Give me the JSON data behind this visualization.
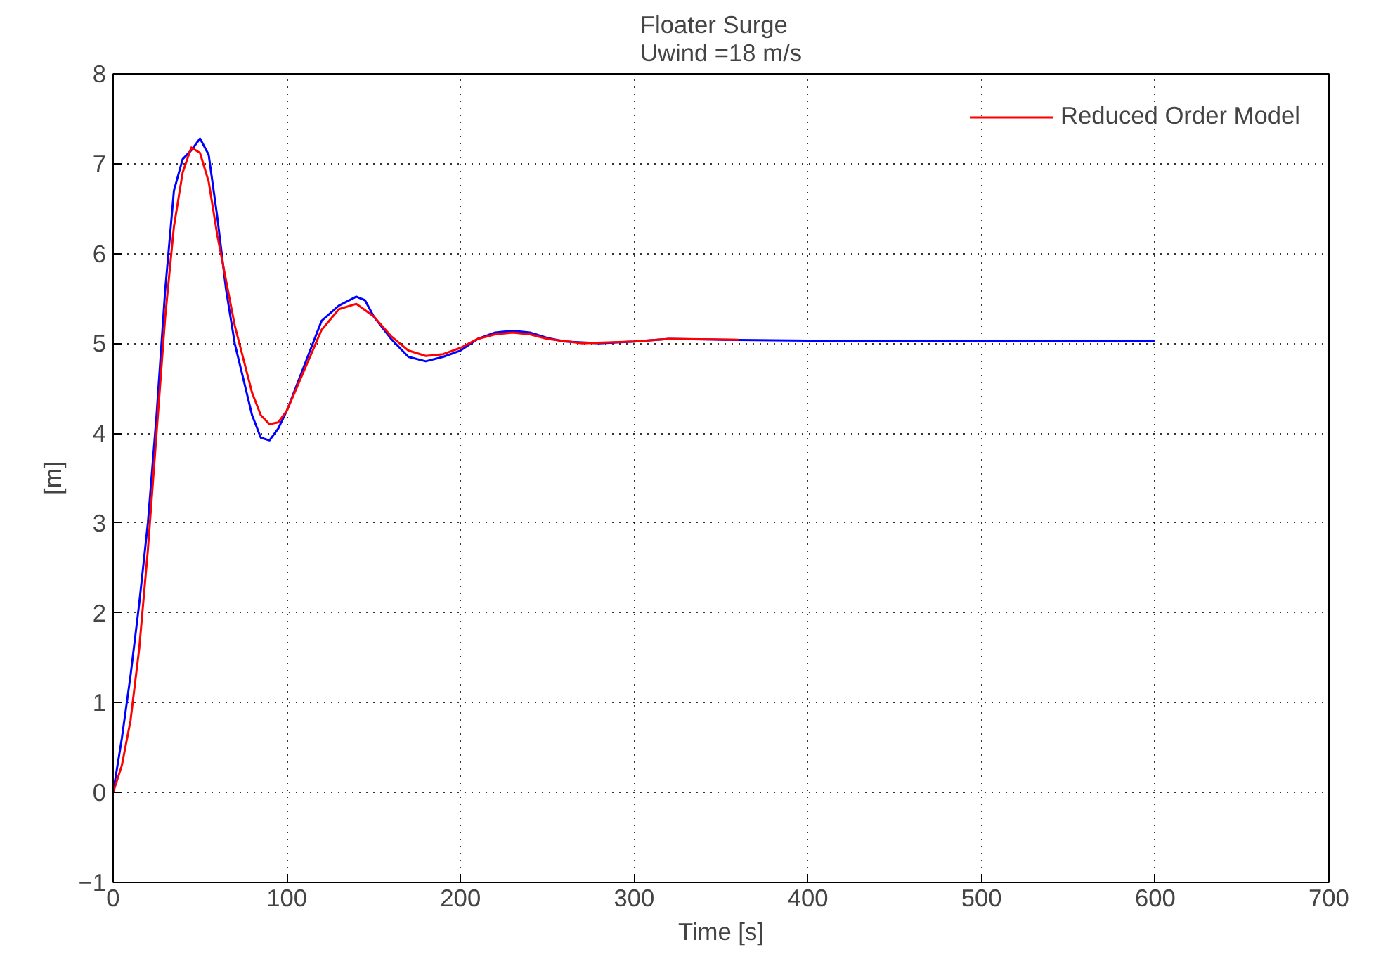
{
  "chart_data": {
    "type": "line",
    "title": "Floater Surge\nUwind =18 m/s",
    "xlabel": "Time [s]",
    "ylabel": "[m]",
    "xlim": [
      0,
      700
    ],
    "xticks": [
      0,
      100,
      200,
      300,
      400,
      500,
      600,
      700
    ],
    "ylim": [
      -1,
      8
    ],
    "yticks": [
      -1,
      0,
      1,
      2,
      3,
      4,
      5,
      6,
      7,
      8
    ],
    "grid": true,
    "legend": "top right",
    "line_style": "solid",
    "series": [
      {
        "color": "#0000ff",
        "x": [
          0,
          5,
          10,
          15,
          20,
          25,
          30,
          35,
          40,
          45,
          50,
          55,
          60,
          65,
          70,
          75,
          80,
          85,
          90,
          95,
          100,
          110,
          120,
          130,
          140,
          145,
          150,
          160,
          170,
          180,
          190,
          200,
          210,
          220,
          230,
          240,
          250,
          260,
          280,
          300,
          320,
          350,
          400,
          500,
          600
        ],
        "values": [
          0,
          0.6,
          1.3,
          2.1,
          3.0,
          4.2,
          5.6,
          6.7,
          7.05,
          7.15,
          7.28,
          7.1,
          6.4,
          5.6,
          5.0,
          4.6,
          4.2,
          3.95,
          3.92,
          4.05,
          4.25,
          4.75,
          5.25,
          5.42,
          5.52,
          5.48,
          5.3,
          5.05,
          4.85,
          4.8,
          4.85,
          4.92,
          5.05,
          5.12,
          5.14,
          5.12,
          5.06,
          5.02,
          5.0,
          5.02,
          5.05,
          5.04,
          5.03,
          5.03,
          5.03
        ]
      },
      {
        "name": "Reduced Order Model",
        "color": "#ff0000",
        "x": [
          0,
          5,
          10,
          15,
          20,
          25,
          30,
          35,
          40,
          45,
          50,
          55,
          60,
          70,
          80,
          85,
          90,
          95,
          100,
          110,
          120,
          130,
          140,
          150,
          160,
          170,
          180,
          190,
          200,
          210,
          220,
          230,
          240,
          250,
          270,
          300,
          320,
          360
        ],
        "values": [
          0,
          0.3,
          0.8,
          1.6,
          2.7,
          4.0,
          5.3,
          6.3,
          6.9,
          7.18,
          7.12,
          6.8,
          6.2,
          5.2,
          4.45,
          4.2,
          4.1,
          4.12,
          4.25,
          4.7,
          5.15,
          5.38,
          5.44,
          5.3,
          5.08,
          4.92,
          4.86,
          4.88,
          4.95,
          5.05,
          5.1,
          5.12,
          5.1,
          5.05,
          5.0,
          5.02,
          5.05,
          5.04
        ]
      }
    ]
  }
}
